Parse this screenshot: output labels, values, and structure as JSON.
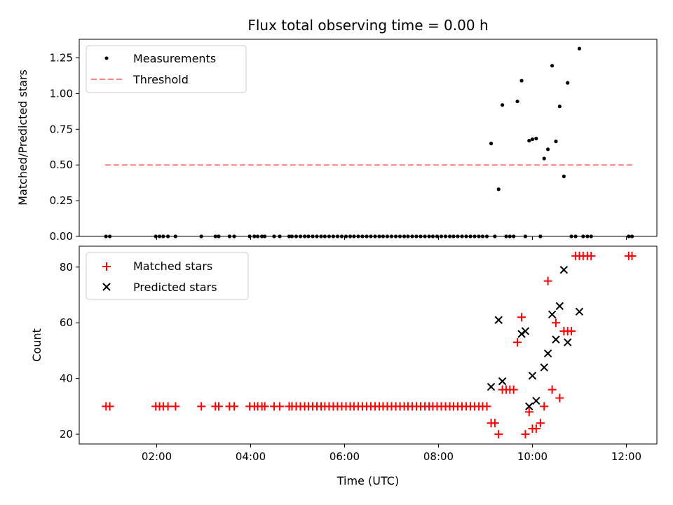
{
  "chart_data": [
    {
      "type": "scatter",
      "title": "Flux total observing time = 0.00 h",
      "ylabel": "Matched/Predicted stars",
      "xlabel": "",
      "xlim": [
        0.35,
        12.65
      ],
      "ylim": [
        0,
        1.38
      ],
      "yticks": [
        0,
        0.25,
        0.5,
        0.75,
        1.0,
        1.25
      ],
      "ytick_labels": [
        "0.00",
        "0.25",
        "0.50",
        "0.75",
        "1.00",
        "1.25"
      ],
      "xticks": [
        2,
        4,
        6,
        8,
        10,
        12
      ],
      "legend": {
        "position": "top-left",
        "entries": [
          "Measurements",
          "Threshold"
        ]
      },
      "series": [
        {
          "name": "Measurements",
          "marker": "dot",
          "color": "#000000",
          "x": [
            0.92,
            1.0,
            1.98,
            2.06,
            2.14,
            2.24,
            2.4,
            2.95,
            3.25,
            3.32,
            3.55,
            3.65,
            3.98,
            4.08,
            4.15,
            4.24,
            4.3,
            4.5,
            4.62,
            4.82,
            4.88,
            4.97,
            5.06,
            5.15,
            5.23,
            5.32,
            5.41,
            5.5,
            5.58,
            5.67,
            5.76,
            5.85,
            5.94,
            6.03,
            6.12,
            6.2,
            6.29,
            6.38,
            6.47,
            6.56,
            6.65,
            6.74,
            6.82,
            6.91,
            7.0,
            7.09,
            7.18,
            7.27,
            7.35,
            7.44,
            7.53,
            7.62,
            7.71,
            7.8,
            7.88,
            7.97,
            8.06,
            8.15,
            8.24,
            8.32,
            8.41,
            8.5,
            8.59,
            8.68,
            8.77,
            8.86,
            8.94,
            9.03,
            9.12,
            9.2,
            9.28,
            9.36,
            9.44,
            9.52,
            9.6,
            9.68,
            9.77,
            9.85,
            9.93,
            10.0,
            10.08,
            10.17,
            10.25,
            10.33,
            10.42,
            10.5,
            10.58,
            10.67,
            10.75,
            10.83,
            10.92,
            11.0,
            11.08,
            11.17,
            11.25,
            12.05,
            12.12
          ],
          "y": [
            0,
            0,
            0,
            0,
            0,
            0,
            0,
            0,
            0,
            0,
            0,
            0,
            0,
            0,
            0,
            0,
            0,
            0,
            0,
            0,
            0,
            0,
            0,
            0,
            0,
            0,
            0,
            0,
            0,
            0,
            0,
            0,
            0,
            0,
            0,
            0,
            0,
            0,
            0,
            0,
            0,
            0,
            0,
            0,
            0,
            0,
            0,
            0,
            0,
            0,
            0,
            0,
            0,
            0,
            0,
            0,
            0,
            0,
            0,
            0,
            0,
            0,
            0,
            0,
            0,
            0,
            0,
            0,
            0.65,
            0,
            0.33,
            0.92,
            0,
            0,
            0,
            0.945,
            1.09,
            0,
            0.67,
            0.68,
            0.685,
            0,
            0.545,
            0.61,
            1.195,
            0.665,
            0.91,
            0.42,
            1.075,
            0,
            0,
            1.315,
            0,
            0,
            0,
            0,
            0
          ]
        },
        {
          "name": "Threshold",
          "marker": "dashed-line",
          "color": "#ff7f7f",
          "x": [
            0.9,
            12.15
          ],
          "y": [
            0.5,
            0.5
          ]
        }
      ]
    },
    {
      "type": "scatter",
      "title": "",
      "ylabel": "Count",
      "xlabel": "Time (UTC)",
      "xlim": [
        0.35,
        12.65
      ],
      "ylim": [
        16.5,
        87.5
      ],
      "yticks": [
        20,
        40,
        60,
        80
      ],
      "ytick_labels": [
        "20",
        "40",
        "60",
        "80"
      ],
      "xticks": [
        2,
        4,
        6,
        8,
        10,
        12
      ],
      "xtick_labels": [
        "02:00",
        "04:00",
        "06:00",
        "08:00",
        "10:00",
        "12:00"
      ],
      "legend": {
        "position": "top-left",
        "entries": [
          "Matched stars",
          "Predicted stars"
        ]
      },
      "series": [
        {
          "name": "Matched stars",
          "marker": "plus",
          "color": "#ff0000",
          "x": [
            0.92,
            1.0,
            1.98,
            2.06,
            2.14,
            2.24,
            2.4,
            2.95,
            3.25,
            3.32,
            3.55,
            3.65,
            3.98,
            4.08,
            4.15,
            4.24,
            4.3,
            4.5,
            4.62,
            4.82,
            4.88,
            4.97,
            5.06,
            5.15,
            5.23,
            5.32,
            5.41,
            5.5,
            5.58,
            5.67,
            5.76,
            5.85,
            5.94,
            6.03,
            6.12,
            6.2,
            6.29,
            6.38,
            6.47,
            6.56,
            6.65,
            6.74,
            6.82,
            6.91,
            7.0,
            7.09,
            7.18,
            7.27,
            7.35,
            7.44,
            7.53,
            7.62,
            7.71,
            7.8,
            7.88,
            7.97,
            8.06,
            8.15,
            8.24,
            8.32,
            8.41,
            8.5,
            8.59,
            8.68,
            8.77,
            8.86,
            8.94,
            9.03,
            9.12,
            9.2,
            9.28,
            9.36,
            9.44,
            9.52,
            9.6,
            9.68,
            9.77,
            9.85,
            9.93,
            10.0,
            10.08,
            10.17,
            10.25,
            10.33,
            10.42,
            10.5,
            10.58,
            10.67,
            10.75,
            10.83,
            10.92,
            11.0,
            11.08,
            11.17,
            11.25,
            12.05,
            12.12
          ],
          "y": [
            30,
            30,
            30,
            30,
            30,
            30,
            30,
            30,
            30,
            30,
            30,
            30,
            30,
            30,
            30,
            30,
            30,
            30,
            30,
            30,
            30,
            30,
            30,
            30,
            30,
            30,
            30,
            30,
            30,
            30,
            30,
            30,
            30,
            30,
            30,
            30,
            30,
            30,
            30,
            30,
            30,
            30,
            30,
            30,
            30,
            30,
            30,
            30,
            30,
            30,
            30,
            30,
            30,
            30,
            30,
            30,
            30,
            30,
            30,
            30,
            30,
            30,
            30,
            30,
            30,
            30,
            30,
            30,
            24,
            24,
            20,
            36,
            36,
            36,
            36,
            53,
            62,
            20,
            28,
            22,
            22,
            24,
            30,
            75,
            36,
            60,
            33,
            57,
            57,
            57,
            84,
            84,
            84,
            84,
            84,
            84,
            84
          ]
        },
        {
          "name": "Predicted stars",
          "marker": "x",
          "color": "#000000",
          "x": [
            9.12,
            9.28,
            9.36,
            9.77,
            9.85,
            9.93,
            10.0,
            10.08,
            10.25,
            10.33,
            10.42,
            10.5,
            10.58,
            10.67,
            10.75,
            11.0
          ],
          "y": [
            37,
            61,
            39,
            56,
            57,
            30,
            41,
            32,
            44,
            49,
            63,
            54,
            66,
            79,
            53,
            64
          ]
        }
      ]
    }
  ]
}
